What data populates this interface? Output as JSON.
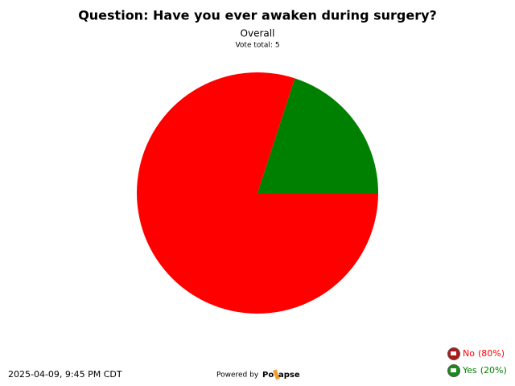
{
  "chart_data": {
    "type": "pie",
    "title": "Question: Have you ever awaken during surgery?",
    "subtitle": "Overall",
    "vote_total": "Vote total: 5",
    "categories": [
      "No",
      "Yes"
    ],
    "values": [
      80,
      20
    ],
    "value_labels": [
      "(80%)",
      "(20%)"
    ],
    "colors": [
      "#ff0000",
      "#008000"
    ],
    "date": "2025-04-09, 9:45 PM CDT",
    "powered_by": "Powered by",
    "brand_start": "Po",
    "brand_end": "apse"
  }
}
